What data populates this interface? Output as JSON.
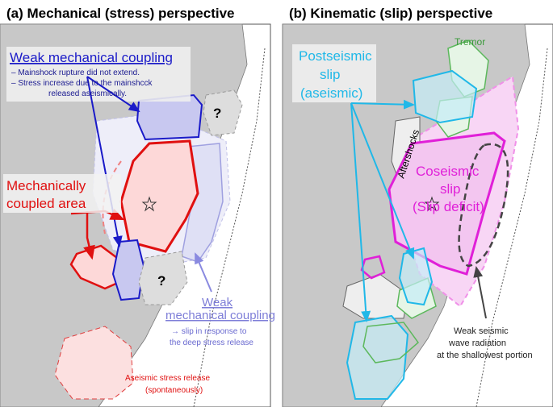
{
  "panel_a": {
    "title": "(a) Mechanical (stress) perspective",
    "weak_coupling_heading": "Weak mechanical coupling",
    "weak_coupling_notes": [
      "– Mainshock rupture did not extend.",
      "– Stress increase due to the mainshcck",
      "released aseismically."
    ],
    "question_marks": [
      "?",
      "?"
    ],
    "coupled_area": [
      "Mechanically",
      "coupled area"
    ],
    "deep_coupling": [
      "Weak",
      "mechanical coupling"
    ],
    "deep_coupling_notes": [
      "→ slip in response to",
      "the deep stress release"
    ],
    "aseismic_release": [
      "Aseismic stress release",
      "(spontaneously)"
    ]
  },
  "panel_b": {
    "title": "(b) Kinematic (slip) perspective",
    "tremor": "Tremor",
    "postseismic": [
      "Postseismic",
      "slip",
      "(aseismic)"
    ],
    "aftershocks": "Aftershocks",
    "coseismic": [
      "Coseismic",
      "slip",
      "(Slip deficit)"
    ],
    "weak_radiation": [
      "Weak seismic",
      "wave radiation",
      "at the shallowest portion"
    ]
  }
}
